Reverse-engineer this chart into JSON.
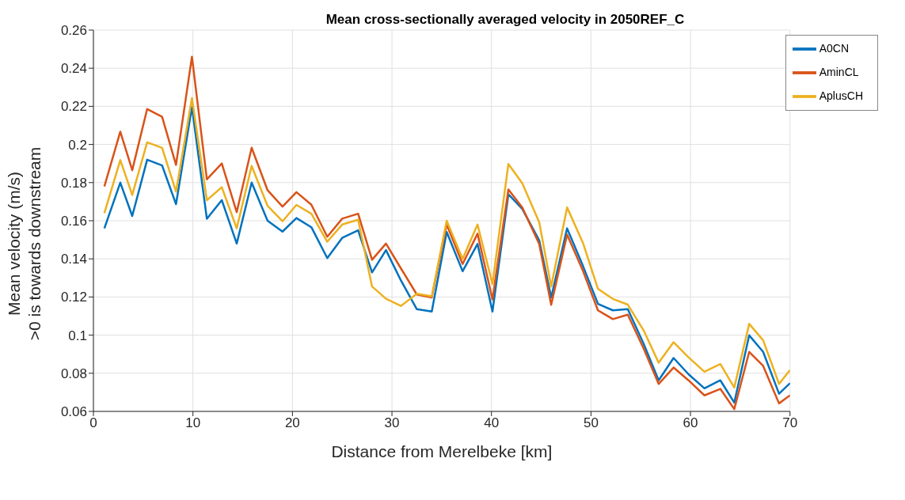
{
  "chart_data": {
    "type": "line",
    "title": "Mean cross-sectionally averaged velocity in 2050REF_C",
    "xlabel": "Distance from Merelbeke [km]",
    "ylabel": "Mean velocity (m/s)\n>0 is towards downstream",
    "x": [
      1.1,
      2.7,
      3.9,
      5.4,
      6.9,
      8.3,
      9.9,
      11.4,
      12.9,
      14.4,
      15.9,
      17.5,
      19.0,
      20.4,
      21.9,
      23.5,
      25.0,
      26.6,
      28.0,
      29.4,
      30.9,
      32.5,
      34.0,
      35.5,
      37.1,
      38.6,
      40.1,
      41.7,
      43.1,
      44.8,
      46.0,
      47.6,
      49.2,
      50.7,
      52.2,
      53.7,
      55.3,
      56.8,
      58.3,
      59.8,
      61.4,
      63.0,
      64.4,
      65.9,
      67.3,
      68.9,
      70.0
    ],
    "series": [
      {
        "name": "A0CN",
        "color": "#0072bd",
        "values": [
          0.156,
          0.18,
          0.1625,
          0.192,
          0.189,
          0.1687,
          0.2196,
          0.161,
          0.1708,
          0.148,
          0.18,
          0.16,
          0.1543,
          0.1614,
          0.1566,
          0.1404,
          0.151,
          0.155,
          0.1329,
          0.1446,
          0.1287,
          0.1136,
          0.1124,
          0.1541,
          0.1335,
          0.1478,
          0.1124,
          0.1739,
          0.1662,
          0.1497,
          0.1197,
          0.156,
          0.1362,
          0.1164,
          0.113,
          0.1136,
          0.0954,
          0.0763,
          0.088,
          0.0795,
          0.0721,
          0.0763,
          0.0646,
          0.0999,
          0.0912,
          0.0693,
          0.0748
        ]
      },
      {
        "name": "AminCL",
        "color": "#d95319",
        "values": [
          0.178,
          0.2067,
          0.1865,
          0.2186,
          0.2145,
          0.1893,
          0.246,
          0.1817,
          0.19,
          0.1645,
          0.1983,
          0.176,
          0.1674,
          0.175,
          0.1684,
          0.1516,
          0.1611,
          0.1637,
          0.1395,
          0.148,
          0.135,
          0.1213,
          0.1197,
          0.158,
          0.1373,
          0.1532,
          0.1187,
          0.1764,
          0.1669,
          0.1478,
          0.1159,
          0.1527,
          0.1336,
          0.113,
          0.1084,
          0.1107,
          0.0929,
          0.0744,
          0.083,
          0.0763,
          0.0684,
          0.0718,
          0.0612,
          0.0912,
          0.0839,
          0.0642,
          0.0684
        ]
      },
      {
        "name": "AplusCH",
        "color": "#edb120",
        "values": [
          0.164,
          0.1918,
          0.1735,
          0.2011,
          0.1982,
          0.1753,
          0.2243,
          0.1708,
          0.1776,
          0.156,
          0.1887,
          0.1678,
          0.1597,
          0.1683,
          0.1637,
          0.149,
          0.158,
          0.1605,
          0.1255,
          0.1191,
          0.1153,
          0.1217,
          0.1204,
          0.16,
          0.14,
          0.158,
          0.1268,
          0.1898,
          0.1796,
          0.1592,
          0.1255,
          0.167,
          0.1483,
          0.1243,
          0.119,
          0.116,
          0.1024,
          0.0855,
          0.0963,
          0.0884,
          0.0808,
          0.0848,
          0.0725,
          0.1059,
          0.0973,
          0.0744,
          0.0817
        ]
      }
    ],
    "xlim": [
      0,
      70
    ],
    "xticks": [
      0,
      10,
      20,
      30,
      40,
      50,
      60,
      70
    ],
    "ylim": [
      0.06,
      0.26
    ],
    "yticks": [
      0.06,
      0.08,
      0.1,
      0.12,
      0.14,
      0.16,
      0.18,
      0.2,
      0.22,
      0.24,
      0.26
    ],
    "grid": true,
    "legend": "top right",
    "marker": "none",
    "line_style": "solid"
  }
}
